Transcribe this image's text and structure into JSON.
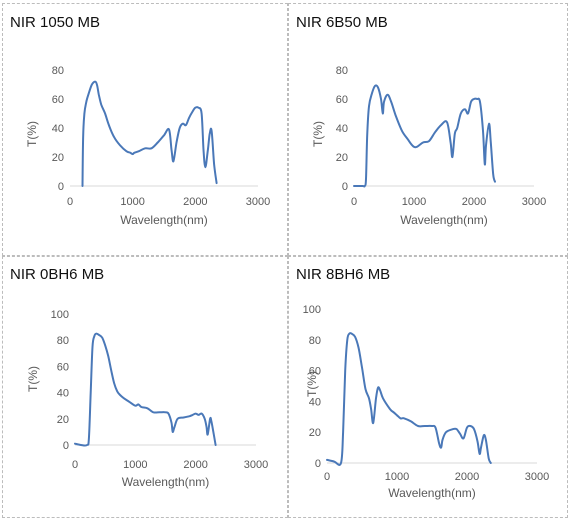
{
  "chart_data": [
    {
      "type": "line",
      "title": "NIR 1050 MB",
      "xlabel": "Wavelength(nm)",
      "ylabel": "T(%)",
      "xlim": [
        0,
        3000
      ],
      "ylim": [
        0,
        80
      ],
      "xticks": [
        0,
        1000,
        2000,
        3000
      ],
      "yticks": [
        0,
        20,
        40,
        60,
        80
      ],
      "x": [
        200,
        210,
        230,
        260,
        300,
        350,
        400,
        430,
        460,
        500,
        560,
        620,
        700,
        800,
        900,
        960,
        1000,
        1030,
        1100,
        1200,
        1300,
        1400,
        1500,
        1580,
        1620,
        1650,
        1700,
        1750,
        1800,
        1850,
        1900,
        1950,
        2000,
        2050,
        2100,
        2130,
        2160,
        2200,
        2230,
        2260,
        2300,
        2340
      ],
      "y": [
        0,
        35,
        50,
        58,
        64,
        70,
        72,
        70,
        63,
        56,
        50,
        42,
        34,
        28,
        24,
        23,
        22,
        23,
        24,
        26,
        26,
        30,
        35,
        39,
        25,
        17,
        30,
        40,
        43,
        42,
        47,
        51,
        54,
        54,
        50,
        25,
        13,
        25,
        36,
        38,
        15,
        2
      ]
    },
    {
      "type": "line",
      "title": "NIR 6B50 MB",
      "xlabel": "Wavelength(nm)",
      "ylabel": "T(%)",
      "xlim": [
        0,
        3000
      ],
      "ylim": [
        0,
        80
      ],
      "xticks": [
        0,
        1000,
        2000,
        3000
      ],
      "yticks": [
        0,
        20,
        40,
        60,
        80
      ],
      "x": [
        0,
        100,
        150,
        180,
        200,
        220,
        250,
        300,
        350,
        400,
        450,
        480,
        500,
        560,
        620,
        700,
        800,
        900,
        950,
        1000,
        1050,
        1150,
        1250,
        1350,
        1450,
        1550,
        1610,
        1640,
        1680,
        1720,
        1780,
        1850,
        1900,
        1950,
        2000,
        2050,
        2100,
        2150,
        2180,
        2200,
        2250,
        2280,
        2320,
        2350
      ],
      "y": [
        0,
        0,
        0,
        0,
        5,
        35,
        55,
        64,
        69,
        68,
        60,
        50,
        58,
        63,
        58,
        48,
        38,
        32,
        29,
        27,
        27,
        30,
        31,
        37,
        42,
        44,
        30,
        20,
        36,
        40,
        50,
        53,
        50,
        58,
        60,
        60,
        58,
        38,
        15,
        28,
        43,
        30,
        8,
        3
      ]
    },
    {
      "type": "line",
      "title": "NIR 0BH6 MB",
      "xlabel": "Wavelength(nm)",
      "ylabel": "T(%)",
      "xlim": [
        0,
        3000
      ],
      "ylim": [
        0,
        100
      ],
      "xticks": [
        0,
        1000,
        2000,
        3000
      ],
      "yticks": [
        0,
        20,
        40,
        60,
        80,
        100
      ],
      "x": [
        0,
        100,
        200,
        230,
        260,
        290,
        320,
        350,
        400,
        450,
        500,
        550,
        600,
        650,
        700,
        750,
        800,
        900,
        1000,
        1050,
        1100,
        1200,
        1300,
        1400,
        1500,
        1550,
        1600,
        1620,
        1650,
        1700,
        1800,
        1900,
        1950,
        2000,
        2050,
        2100,
        2150,
        2180,
        2200,
        2240,
        2260,
        2300,
        2330
      ],
      "y": [
        1,
        0,
        0,
        5,
        40,
        75,
        83,
        85,
        84,
        82,
        76,
        68,
        57,
        47,
        41,
        38,
        36,
        33,
        30,
        31,
        29,
        28,
        25,
        25,
        25,
        24,
        17,
        10,
        14,
        20,
        21,
        22,
        23,
        24,
        23,
        24,
        20,
        14,
        8,
        20,
        18,
        8,
        0
      ]
    },
    {
      "type": "line",
      "title": "NIR 8BH6 MB",
      "xlabel": "Wavelength(nm)",
      "ylabel": "T(%)",
      "xlim": [
        0,
        3000
      ],
      "ylim": [
        0,
        100
      ],
      "xticks": [
        0,
        1000,
        2000,
        3000
      ],
      "yticks": [
        0,
        20,
        40,
        60,
        80,
        100
      ],
      "x": [
        0,
        100,
        200,
        230,
        260,
        290,
        320,
        350,
        400,
        450,
        500,
        550,
        600,
        630,
        660,
        700,
        730,
        760,
        800,
        900,
        950,
        1000,
        1050,
        1100,
        1200,
        1300,
        1400,
        1500,
        1550,
        1600,
        1630,
        1650,
        1700,
        1800,
        1850,
        1900,
        1950,
        2000,
        2050,
        2100,
        2150,
        2180,
        2200,
        2240,
        2270,
        2310,
        2340
      ],
      "y": [
        2,
        1,
        0,
        20,
        60,
        80,
        84,
        84,
        82,
        75,
        62,
        48,
        42,
        35,
        26,
        42,
        49,
        47,
        42,
        35,
        33,
        31,
        29,
        29,
        27,
        24,
        24,
        24,
        23,
        13,
        10,
        15,
        20,
        22,
        22,
        19,
        16,
        23,
        24,
        22,
        14,
        6,
        10,
        18,
        15,
        3,
        0
      ]
    }
  ]
}
